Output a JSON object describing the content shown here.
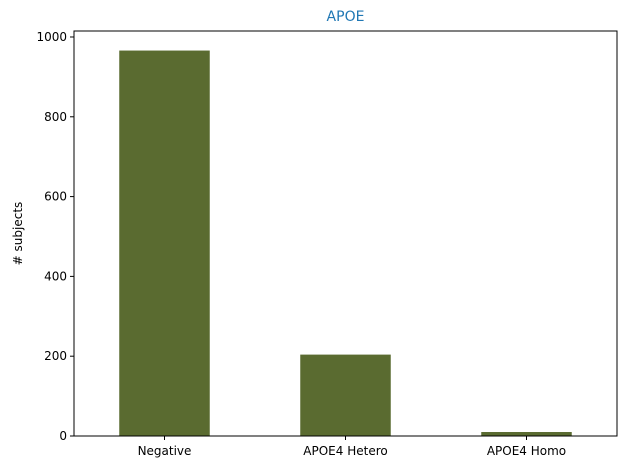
{
  "chart_data": {
    "type": "bar",
    "title": "APOE",
    "xlabel": "",
    "ylabel": "# subjects",
    "categories": [
      "Negative",
      "APOE4 Hetero",
      "APOE4 Homo"
    ],
    "values": [
      966,
      204,
      10
    ],
    "ylim": [
      0,
      1015
    ],
    "yticks": [
      0,
      200,
      400,
      600,
      800,
      1000
    ],
    "grid": false,
    "legend": "none",
    "colors": {
      "bar": "#5a6b30",
      "title": "#1f77b4",
      "axis": "#000000"
    }
  }
}
